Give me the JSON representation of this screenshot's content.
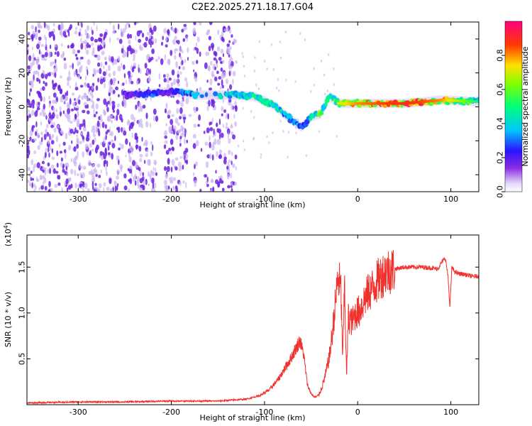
{
  "title": "C2E2.2025.271.18.17.G04",
  "colors": {
    "snr_line": "#f0312c",
    "spectral_scatter": "#6b22e0",
    "spectral_light": "#c9b3f2",
    "axis": "#000000"
  },
  "chart_data": [
    {
      "type": "heatmap",
      "name": "spectrogram",
      "xlabel": "Height of straight line (km)",
      "ylabel": "Frequency (Hz)",
      "xlim": [
        -355,
        130
      ],
      "ylim": [
        -50,
        50
      ],
      "x_ticks": [
        -300,
        -200,
        -100,
        0,
        100
      ],
      "x_tick_labels": [
        "-300",
        "-200",
        "-100",
        "0",
        "100"
      ],
      "y_ticks": [
        -40,
        -20,
        0,
        20,
        40
      ],
      "y_tick_labels": [
        "-40",
        "-20",
        "0",
        "20",
        "40"
      ],
      "colorbar": {
        "label": "Normalized spectral amplitude",
        "range": [
          0,
          1
        ],
        "ticks": [
          0.0,
          0.2,
          0.4,
          0.6,
          0.8
        ],
        "tick_labels": [
          "0.0",
          "0.2",
          "0.4",
          "0.6",
          "0.8"
        ],
        "colormap": "rainbow (white-purple-blue-cyan-green-yellow-red-magenta)"
      },
      "noise_region_x": [
        -355,
        -130
      ],
      "signal_trace": {
        "x": [
          -250,
          -220,
          -200,
          -185,
          -175,
          -130,
          -110,
          -90,
          -75,
          -60,
          -50,
          -40,
          -30,
          -20,
          0,
          50,
          90,
          130
        ],
        "freq_hz": [
          7,
          8,
          9,
          8,
          7,
          7,
          6,
          1,
          -6,
          -12,
          -6,
          -4,
          6,
          2,
          2,
          2,
          4,
          3
        ],
        "amplitude": [
          0.2,
          0.3,
          0.2,
          0.35,
          0.4,
          0.45,
          0.5,
          0.45,
          0.4,
          0.35,
          0.45,
          0.6,
          0.5,
          0.7,
          0.8,
          0.9,
          0.8,
          0.5
        ]
      }
    },
    {
      "type": "line",
      "name": "snr",
      "xlabel": "Height of straight line (km)",
      "ylabel": "SNR (10 * v/v)",
      "y_multiplier": "(x10^4)",
      "y_multiplier_base": "(x10",
      "y_multiplier_exp": "4",
      "y_multiplier_close": ")",
      "xlim": [
        -355,
        130
      ],
      "ylim": [
        0,
        1.85
      ],
      "x_ticks": [
        -300,
        -200,
        -100,
        0,
        100
      ],
      "x_tick_labels": [
        "-300",
        "-200",
        "-100",
        "0",
        "100"
      ],
      "y_ticks": [
        0.5,
        1.0,
        1.5
      ],
      "y_tick_labels": [
        "0.5",
        "1.0",
        "1.5"
      ],
      "series": [
        {
          "name": "SNR",
          "x": [
            -355,
            -300,
            -250,
            -200,
            -150,
            -120,
            -105,
            -95,
            -85,
            -78,
            -72,
            -66,
            -62,
            -58,
            -54,
            -50,
            -46,
            -42,
            -38,
            -34,
            -30,
            -27,
            -24,
            -21,
            -18,
            -16,
            -14,
            -12,
            -10,
            -6,
            -2,
            2,
            6,
            10,
            15,
            20,
            25,
            30,
            40,
            50,
            60,
            70,
            80,
            86,
            90,
            94,
            97,
            99,
            101,
            104,
            108,
            115,
            122,
            130
          ],
          "y": [
            0.02,
            0.03,
            0.03,
            0.04,
            0.04,
            0.06,
            0.1,
            0.16,
            0.28,
            0.4,
            0.5,
            0.62,
            0.7,
            0.55,
            0.22,
            0.12,
            0.08,
            0.1,
            0.2,
            0.35,
            0.55,
            0.8,
            1.1,
            1.4,
            1.25,
            0.5,
            1.35,
            0.3,
            0.95,
            0.9,
            1.0,
            1.02,
            1.12,
            1.2,
            1.26,
            1.33,
            1.4,
            1.45,
            1.48,
            1.5,
            1.5,
            1.5,
            1.49,
            1.48,
            1.55,
            1.6,
            1.4,
            1.05,
            1.5,
            1.45,
            1.43,
            1.42,
            1.4,
            1.4
          ]
        }
      ]
    }
  ]
}
